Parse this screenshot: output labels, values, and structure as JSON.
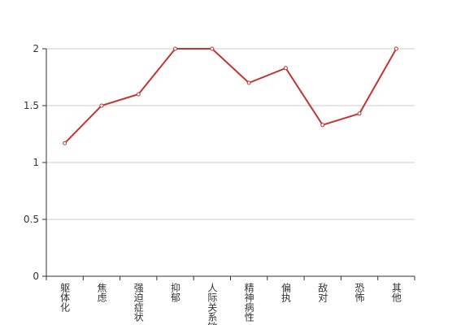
{
  "chart_data": {
    "type": "line",
    "categories": [
      "躯体化",
      "焦虑",
      "强迫症状",
      "抑郁",
      "人际关系敏感",
      "精神病性",
      "偏执",
      "敌对",
      "恐怖",
      "其他"
    ],
    "values": [
      1.17,
      1.5,
      1.6,
      2,
      2,
      1.7,
      1.83,
      1.33,
      1.43,
      2
    ],
    "color": "#c23531",
    "ylim": [
      0,
      2
    ],
    "yticks": [
      0,
      0.5,
      1,
      1.5,
      2
    ],
    "grid": true
  }
}
